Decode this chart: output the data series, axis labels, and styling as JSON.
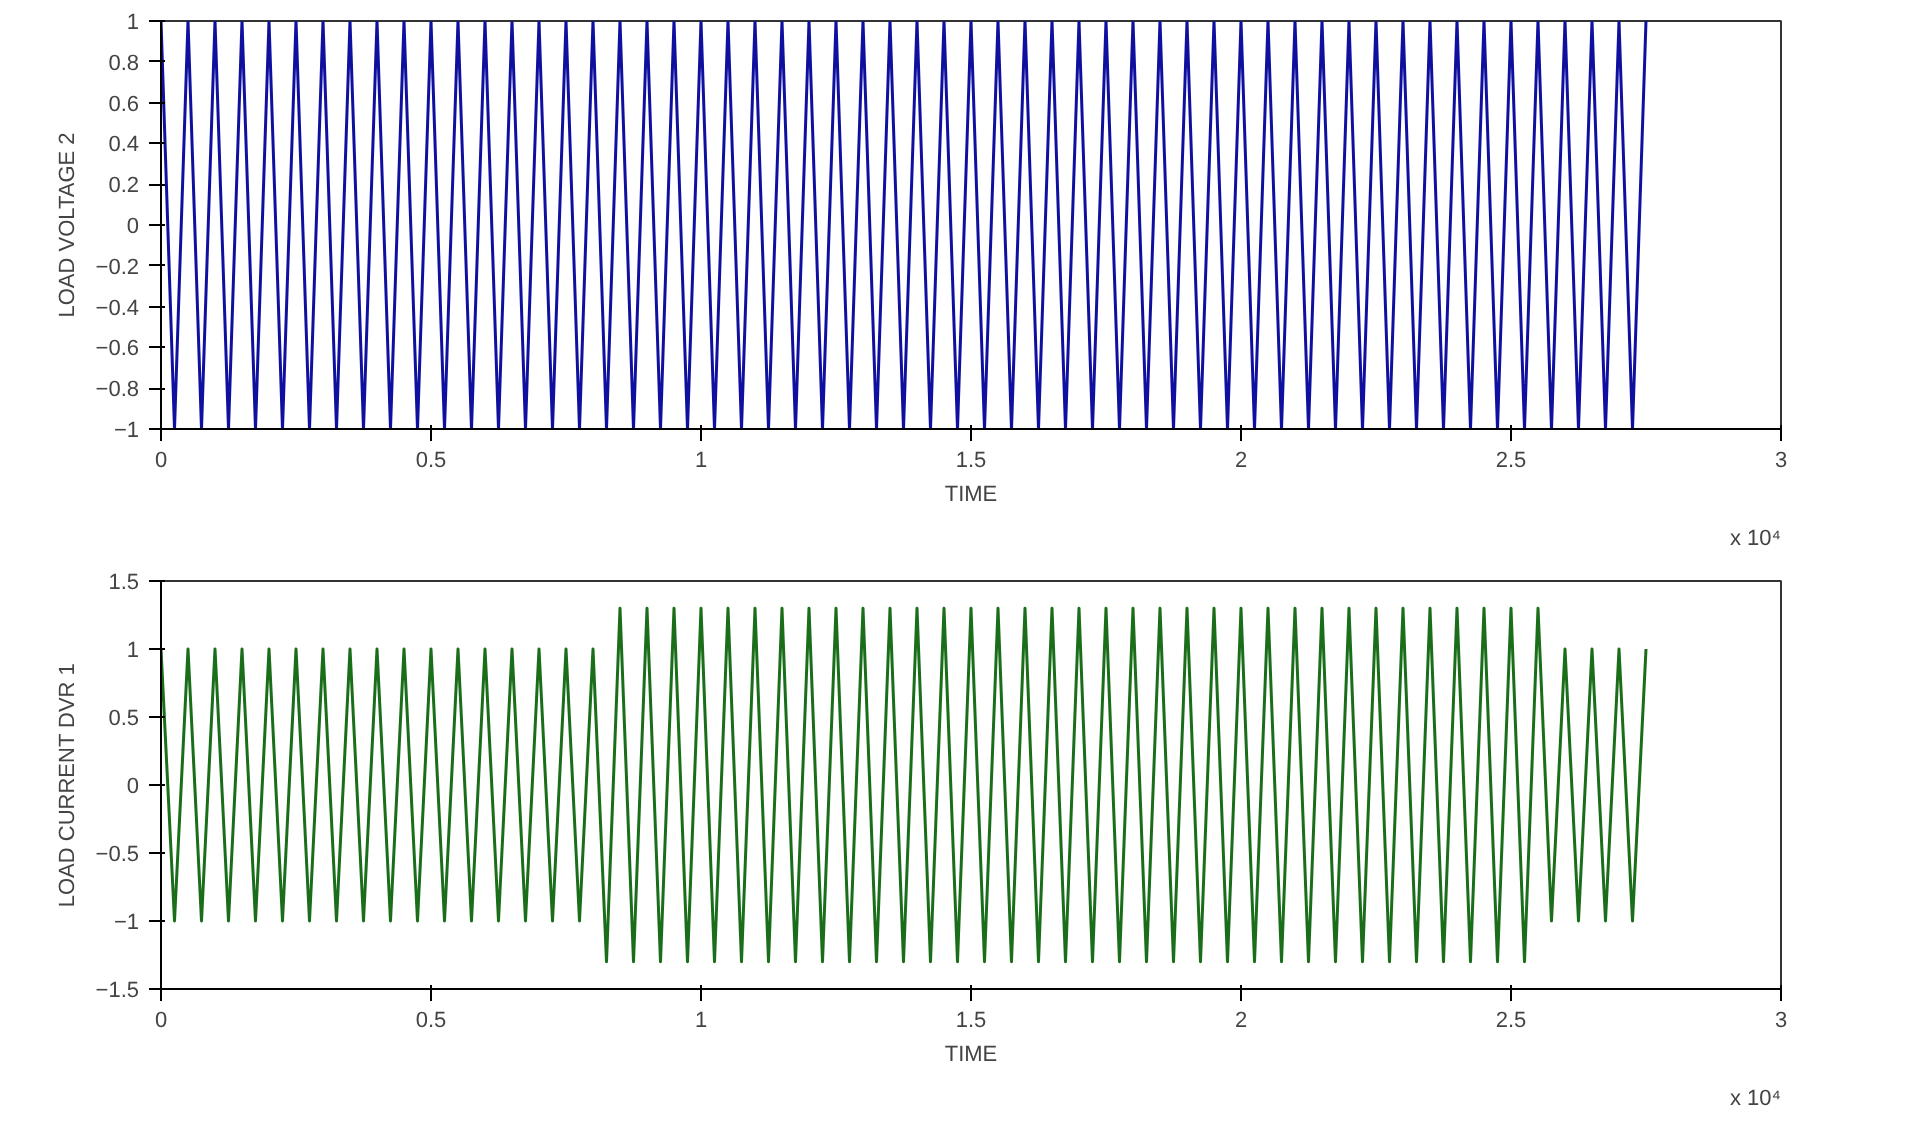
{
  "chart_data": [
    {
      "type": "line",
      "xlabel": "TIME",
      "ylabel": "LOAD VOLTAGE 2",
      "annotations": [
        "x 10⁴"
      ],
      "grid": false,
      "line_style": "solid",
      "xlim": [
        0,
        3
      ],
      "xticks": [
        0,
        0.5,
        1,
        1.5,
        2,
        2.5,
        3
      ],
      "ylim": [
        -1,
        1
      ],
      "yticks": [
        -1,
        -0.8,
        -0.6,
        -0.4,
        -0.2,
        0,
        0.2,
        0.4,
        0.6,
        0.8,
        1
      ],
      "x": [
        0,
        0.025,
        0.05,
        0.075,
        0.1,
        0.125,
        0.15,
        0.175,
        0.2,
        0.225,
        0.25,
        0.275,
        0.3,
        0.325,
        0.35,
        0.375,
        0.4,
        0.425,
        0.45,
        0.475,
        0.5,
        0.525,
        0.55,
        0.575,
        0.6,
        0.625,
        0.65,
        0.675,
        0.7,
        0.725,
        0.75,
        0.775,
        0.8,
        0.825,
        0.85,
        0.875,
        0.9,
        0.925,
        0.95,
        0.975,
        1,
        1.025,
        1.05,
        1.075,
        1.1,
        1.125,
        1.15,
        1.175,
        1.2,
        1.225,
        1.25,
        1.275,
        1.3,
        1.325,
        1.35,
        1.375,
        1.4,
        1.425,
        1.45,
        1.475,
        1.5,
        1.525,
        1.55,
        1.575,
        1.6,
        1.625,
        1.65,
        1.675,
        1.7,
        1.725,
        1.75,
        1.775,
        1.8,
        1.825,
        1.85,
        1.875,
        1.9,
        1.925,
        1.95,
        1.975,
        2,
        2.025,
        2.05,
        2.075,
        2.1,
        2.125,
        2.15,
        2.175,
        2.2,
        2.225,
        2.25,
        2.275,
        2.3,
        2.325,
        2.35,
        2.375,
        2.4,
        2.425,
        2.45,
        2.475,
        2.5,
        2.525,
        2.55,
        2.575,
        2.6,
        2.625,
        2.65,
        2.675,
        2.7,
        2.725,
        2.75
      ],
      "series": [
        {
          "color": "#1010a0",
          "values": [
            1,
            -1,
            1,
            -1,
            1,
            -1,
            1,
            -1,
            1,
            -1,
            1,
            -1,
            1,
            -1,
            1,
            -1,
            1,
            -1,
            1,
            -1,
            1,
            -1,
            1,
            -1,
            1,
            -1,
            1,
            -1,
            1,
            -1,
            1,
            -1,
            1,
            -1,
            1,
            -1,
            1,
            -1,
            1,
            -1,
            1,
            -1,
            1,
            -1,
            1,
            -1,
            1,
            -1,
            1,
            -1,
            1,
            -1,
            1,
            -1,
            1,
            -1,
            1,
            -1,
            1,
            -1,
            1,
            -1,
            1,
            -1,
            1,
            -1,
            1,
            -1,
            1,
            -1,
            1,
            -1,
            1,
            -1,
            1,
            -1,
            1,
            -1,
            1,
            -1,
            1,
            -1,
            1,
            -1,
            1,
            -1,
            1,
            -1,
            1,
            -1,
            1,
            -1,
            1,
            -1,
            1,
            -1,
            1,
            -1,
            1,
            -1,
            1,
            -1,
            1,
            -1,
            1,
            -1,
            1,
            -1,
            1,
            -1,
            1
          ]
        }
      ]
    },
    {
      "type": "line",
      "xlabel": "TIME",
      "ylabel": "LOAD CURRENT DVR 1",
      "annotations": [
        "x 10⁴"
      ],
      "grid": false,
      "line_style": "solid",
      "xlim": [
        0,
        3
      ],
      "xticks": [
        0,
        0.5,
        1,
        1.5,
        2,
        2.5,
        3
      ],
      "ylim": [
        -1.5,
        1.5
      ],
      "yticks": [
        -1.5,
        -1,
        -0.5,
        0,
        0.5,
        1,
        1.5
      ],
      "x": [
        0,
        0.025,
        0.05,
        0.075,
        0.1,
        0.125,
        0.15,
        0.175,
        0.2,
        0.225,
        0.25,
        0.275,
        0.3,
        0.325,
        0.35,
        0.375,
        0.4,
        0.425,
        0.45,
        0.475,
        0.5,
        0.525,
        0.55,
        0.575,
        0.6,
        0.625,
        0.65,
        0.675,
        0.7,
        0.725,
        0.75,
        0.775,
        0.8,
        0.825,
        0.85,
        0.875,
        0.9,
        0.925,
        0.95,
        0.975,
        1,
        1.025,
        1.05,
        1.075,
        1.1,
        1.125,
        1.15,
        1.175,
        1.2,
        1.225,
        1.25,
        1.275,
        1.3,
        1.325,
        1.35,
        1.375,
        1.4,
        1.425,
        1.45,
        1.475,
        1.5,
        1.525,
        1.55,
        1.575,
        1.6,
        1.625,
        1.65,
        1.675,
        1.7,
        1.725,
        1.75,
        1.775,
        1.8,
        1.825,
        1.85,
        1.875,
        1.9,
        1.925,
        1.95,
        1.975,
        2,
        2.025,
        2.05,
        2.075,
        2.1,
        2.125,
        2.15,
        2.175,
        2.2,
        2.225,
        2.25,
        2.275,
        2.3,
        2.325,
        2.35,
        2.375,
        2.4,
        2.425,
        2.45,
        2.475,
        2.5,
        2.525,
        2.55,
        2.575,
        2.6,
        2.625,
        2.65,
        2.675,
        2.7,
        2.725,
        2.75
      ],
      "series": [
        {
          "color": "#1a6e1a",
          "values": [
            1,
            -1,
            1,
            -1,
            1,
            -1,
            1,
            -1,
            1,
            -1,
            1,
            -1,
            1,
            -1,
            1,
            -1,
            1,
            -1,
            1,
            -1,
            1,
            -1,
            1,
            -1,
            1,
            -1,
            1,
            -1,
            1,
            -1,
            1,
            -1,
            1,
            -1.3,
            1.3,
            -1.3,
            1.3,
            -1.3,
            1.3,
            -1.3,
            1.3,
            -1.3,
            1.3,
            -1.3,
            1.3,
            -1.3,
            1.3,
            -1.3,
            1.3,
            -1.3,
            1.3,
            -1.3,
            1.3,
            -1.3,
            1.3,
            -1.3,
            1.3,
            -1.3,
            1.3,
            -1.3,
            1.3,
            -1.3,
            1.3,
            -1.3,
            1.3,
            -1.3,
            1.3,
            -1.3,
            1.3,
            -1.3,
            1.3,
            -1.3,
            1.3,
            -1.3,
            1.3,
            -1.3,
            1.3,
            -1.3,
            1.3,
            -1.3,
            1.3,
            -1.3,
            1.3,
            -1.3,
            1.3,
            -1.3,
            1.3,
            -1.3,
            1.3,
            -1.3,
            1.3,
            -1.3,
            1.3,
            -1.3,
            1.3,
            -1.3,
            1.3,
            -1.3,
            1.3,
            -1.3,
            1.3,
            -1.3,
            1.3,
            -1,
            1,
            -1,
            1,
            -1,
            1,
            -1,
            1
          ]
        }
      ]
    }
  ]
}
